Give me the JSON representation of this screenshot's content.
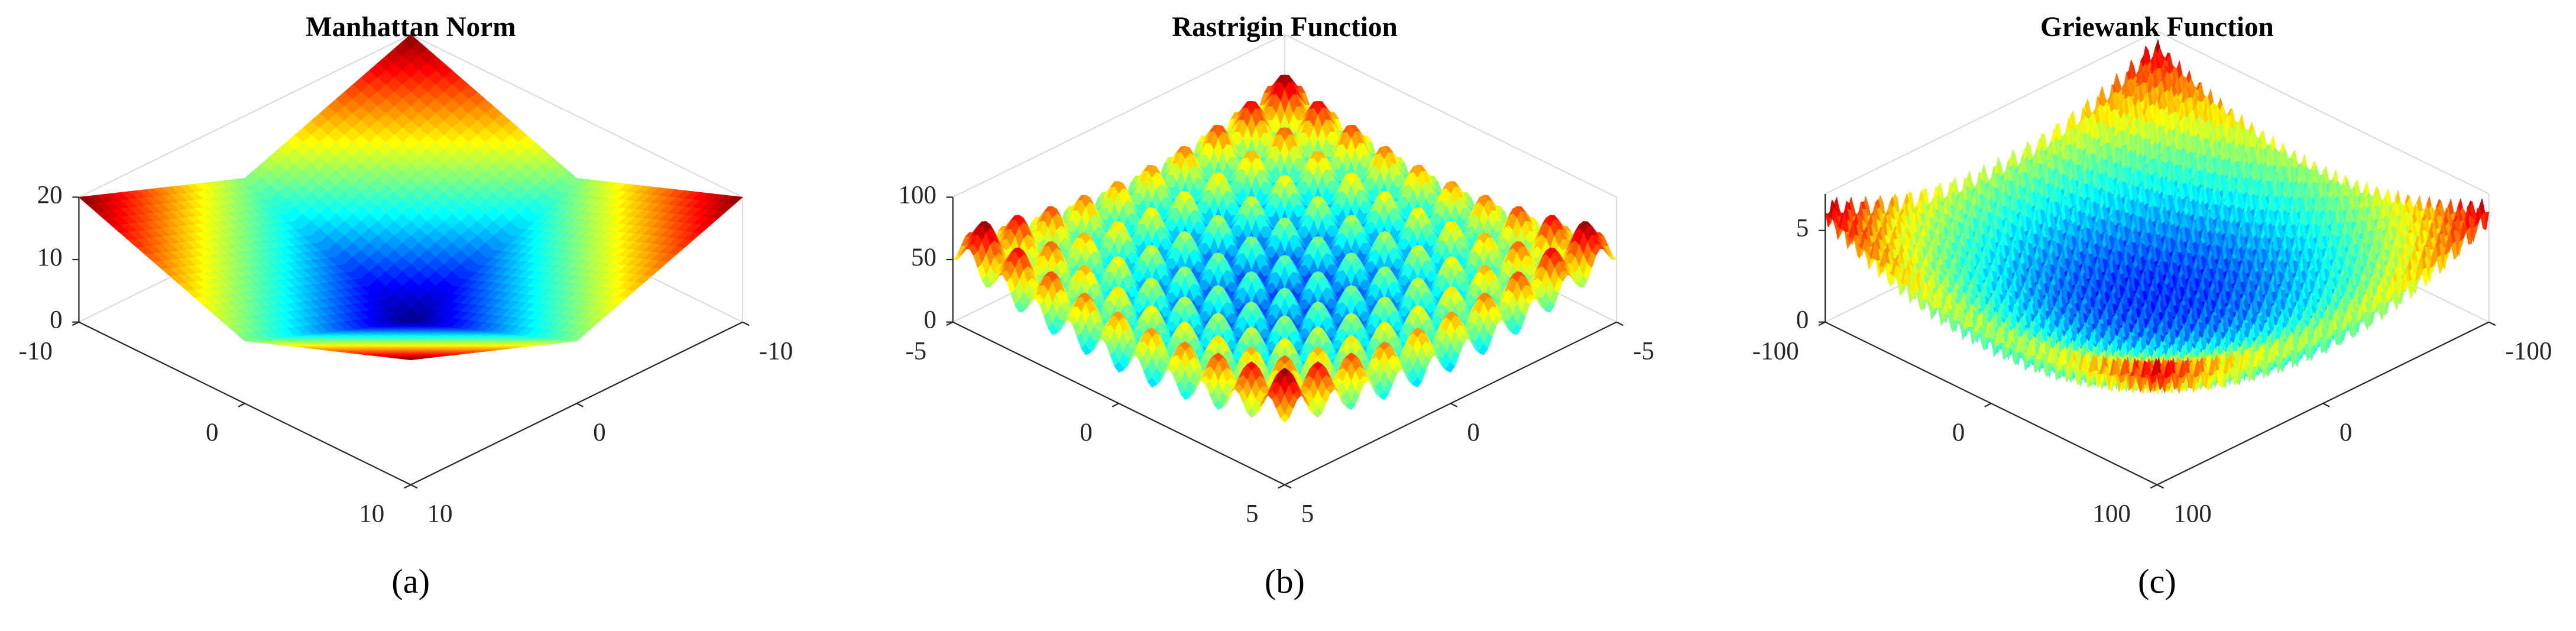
{
  "chart_data": [
    {
      "type": "surface",
      "title": "Manhattan Norm",
      "caption": "(a)",
      "colormap": "jet",
      "xlim": [
        -10,
        10
      ],
      "ylim": [
        -10,
        10
      ],
      "zlim": [
        0,
        20
      ],
      "xticks": [
        -10,
        0,
        10
      ],
      "yticks": [
        -10,
        0,
        10
      ],
      "zticks": [
        0,
        10,
        20
      ]
    },
    {
      "type": "surface",
      "title": "Rastrigin Function",
      "caption": "(b)",
      "colormap": "jet",
      "xlim": [
        -5,
        5
      ],
      "ylim": [
        -5,
        5
      ],
      "zlim": [
        0,
        100
      ],
      "xticks": [
        -5,
        0,
        5
      ],
      "yticks": [
        -5,
        0,
        5
      ],
      "zticks": [
        0,
        50,
        100
      ]
    },
    {
      "type": "surface",
      "title": "Griewank Function",
      "caption": "(c)",
      "colormap": "jet",
      "xlim": [
        -100,
        100
      ],
      "ylim": [
        -100,
        100
      ],
      "zlim": [
        0,
        7
      ],
      "xticks": [
        -100,
        0,
        100
      ],
      "yticks": [
        -100,
        0,
        100
      ],
      "zticks": [
        0,
        5
      ]
    }
  ]
}
